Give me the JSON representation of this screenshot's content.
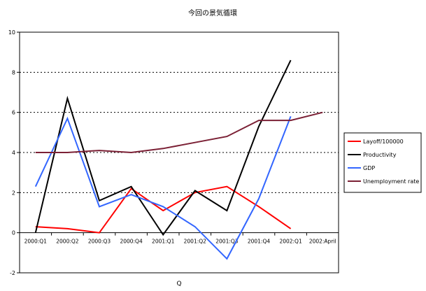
{
  "chart_data": {
    "type": "line",
    "title": "今回の景気循環",
    "xlabel": "Q",
    "ylabel": "",
    "categories": [
      "2000:Q1",
      "2000:Q2",
      "2000:Q3",
      "2000:Q4",
      "2001:Q1",
      "2001:Q2",
      "2001:Q3",
      "2001:Q4",
      "2002:Q1",
      "2002:April"
    ],
    "ylim": [
      -2,
      10
    ],
    "yticks": [
      -2,
      0,
      2,
      4,
      6,
      8,
      10
    ],
    "grid": "horizontal-dotted",
    "legend_position": "right",
    "series": [
      {
        "name": "Layoff/100000",
        "color": "#ff0000",
        "values": [
          0.3,
          0.2,
          0.0,
          2.2,
          1.1,
          2.0,
          2.3,
          1.3,
          0.2,
          null
        ]
      },
      {
        "name": "Productivity",
        "color": "#000000",
        "values": [
          0.0,
          6.7,
          1.6,
          2.3,
          -0.1,
          2.1,
          1.1,
          5.3,
          8.6,
          null
        ]
      },
      {
        "name": "GDP",
        "color": "#3366ff",
        "values": [
          2.3,
          5.7,
          1.3,
          1.9,
          1.3,
          0.3,
          -1.3,
          1.7,
          5.8,
          null
        ]
      },
      {
        "name": "Unemployment rate",
        "color": "#7b2035",
        "values": [
          4.0,
          4.0,
          4.1,
          4.0,
          4.2,
          4.5,
          4.8,
          5.6,
          5.6,
          6.0
        ]
      }
    ]
  }
}
